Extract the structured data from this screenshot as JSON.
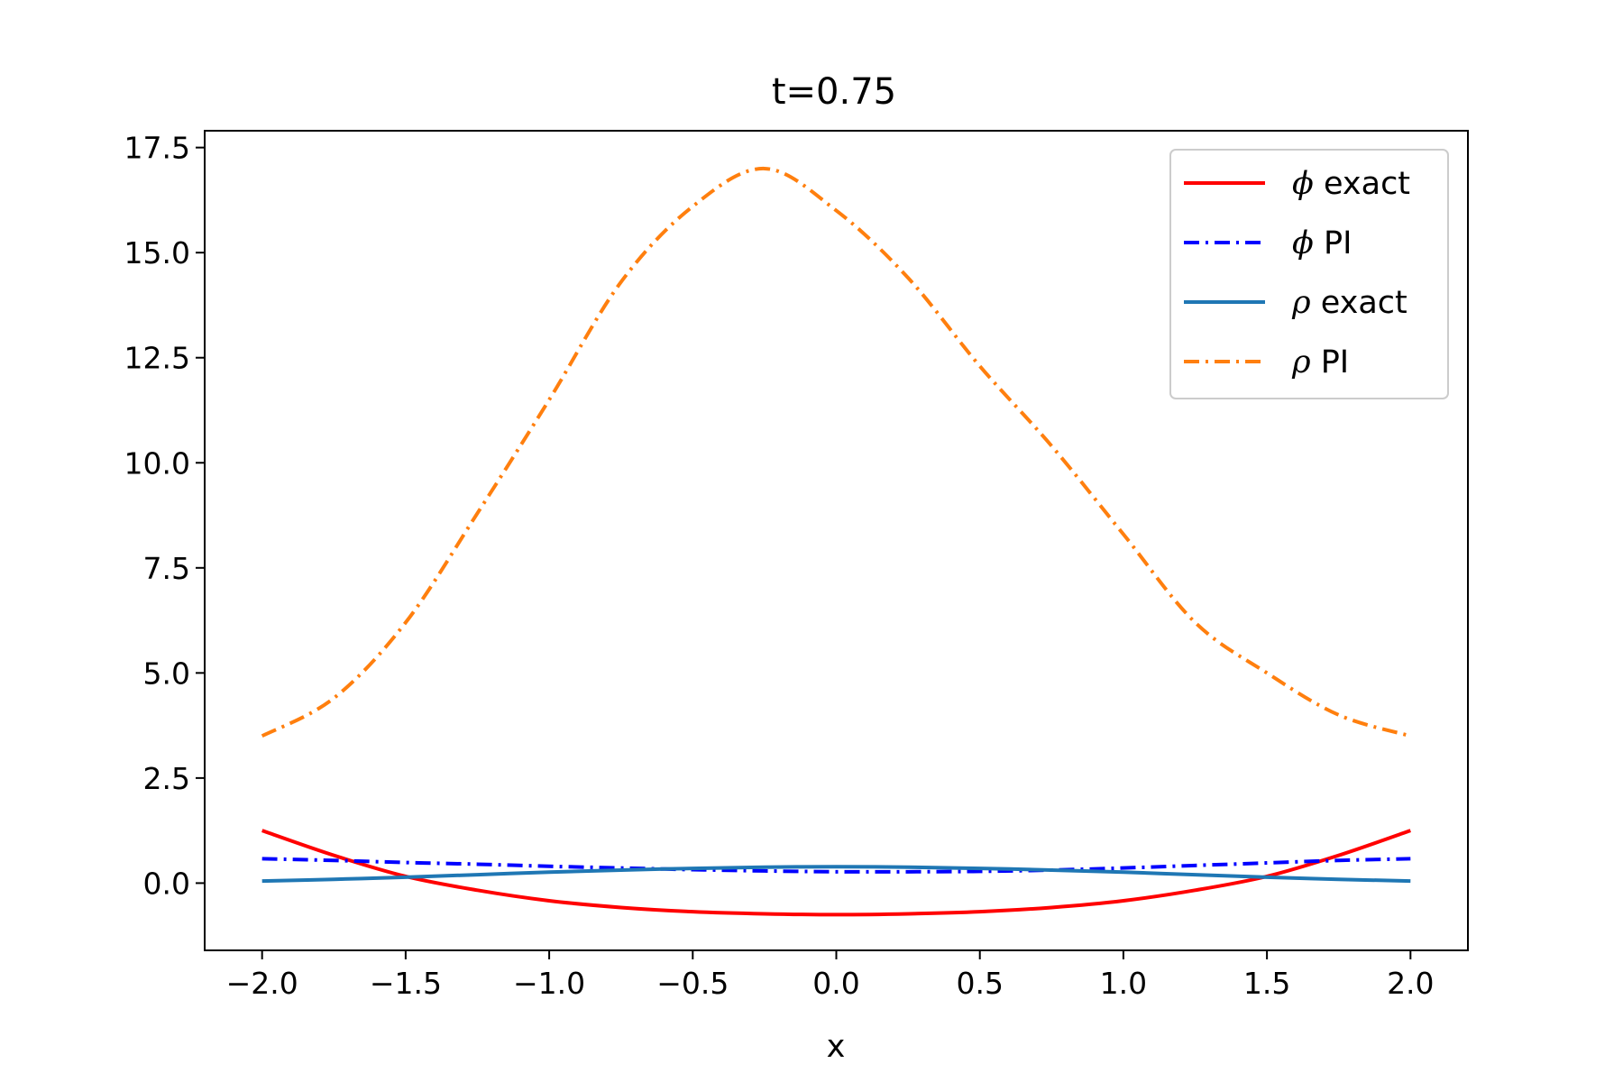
{
  "chart_data": {
    "type": "line",
    "title": "t=0.75",
    "xlabel": "x",
    "ylabel": "",
    "xlim": [
      -2.2,
      2.2
    ],
    "ylim": [
      -1.6,
      17.9
    ],
    "xticks": [
      -2.0,
      -1.5,
      -1.0,
      -0.5,
      0.0,
      0.5,
      1.0,
      1.5,
      2.0
    ],
    "xtick_labels": [
      "−2.0",
      "−1.5",
      "−1.0",
      "−0.5",
      "0.0",
      "0.5",
      "1.0",
      "1.5",
      "2.0"
    ],
    "yticks": [
      0.0,
      2.5,
      5.0,
      7.5,
      10.0,
      12.5,
      15.0,
      17.5
    ],
    "ytick_labels": [
      "0.0",
      "2.5",
      "5.0",
      "7.5",
      "10.0",
      "12.5",
      "15.0",
      "17.5"
    ],
    "grid": false,
    "legend_position": "top-right",
    "x": [
      -2.0,
      -1.75,
      -1.5,
      -1.25,
      -1.0,
      -0.75,
      -0.5,
      -0.25,
      0.0,
      0.25,
      0.5,
      0.75,
      1.0,
      1.25,
      1.5,
      1.75,
      2.0
    ],
    "series": [
      {
        "name": "ϕ exact",
        "symbol": "ϕ",
        "text": "exact",
        "color": "#ff0000",
        "style": "solid",
        "values": [
          1.25,
          0.66,
          0.16,
          -0.17,
          -0.42,
          -0.58,
          -0.68,
          -0.73,
          -0.75,
          -0.73,
          -0.68,
          -0.58,
          -0.42,
          -0.17,
          0.16,
          0.66,
          1.25
        ]
      },
      {
        "name": "ϕ PI",
        "symbol": "ϕ",
        "text": "PI",
        "color": "#0000ff",
        "style": "dashdot",
        "values": [
          0.58,
          0.54,
          0.49,
          0.45,
          0.4,
          0.36,
          0.32,
          0.29,
          0.27,
          0.27,
          0.28,
          0.31,
          0.36,
          0.42,
          0.48,
          0.54,
          0.58
        ]
      },
      {
        "name": "ρ exact",
        "symbol": "ρ",
        "text": "exact",
        "color": "#1f77b4",
        "style": "solid",
        "values": [
          0.05,
          0.09,
          0.14,
          0.2,
          0.26,
          0.31,
          0.35,
          0.38,
          0.39,
          0.38,
          0.35,
          0.31,
          0.26,
          0.2,
          0.14,
          0.09,
          0.05
        ]
      },
      {
        "name": "ρ PI",
        "symbol": "ρ",
        "text": "PI",
        "color": "#ff7f0e",
        "style": "dashdot",
        "values": [
          3.5,
          4.4,
          6.2,
          8.8,
          11.5,
          14.3,
          16.1,
          17.0,
          16.0,
          14.4,
          12.3,
          10.4,
          8.3,
          6.2,
          5.0,
          4.0,
          3.5
        ]
      }
    ]
  }
}
